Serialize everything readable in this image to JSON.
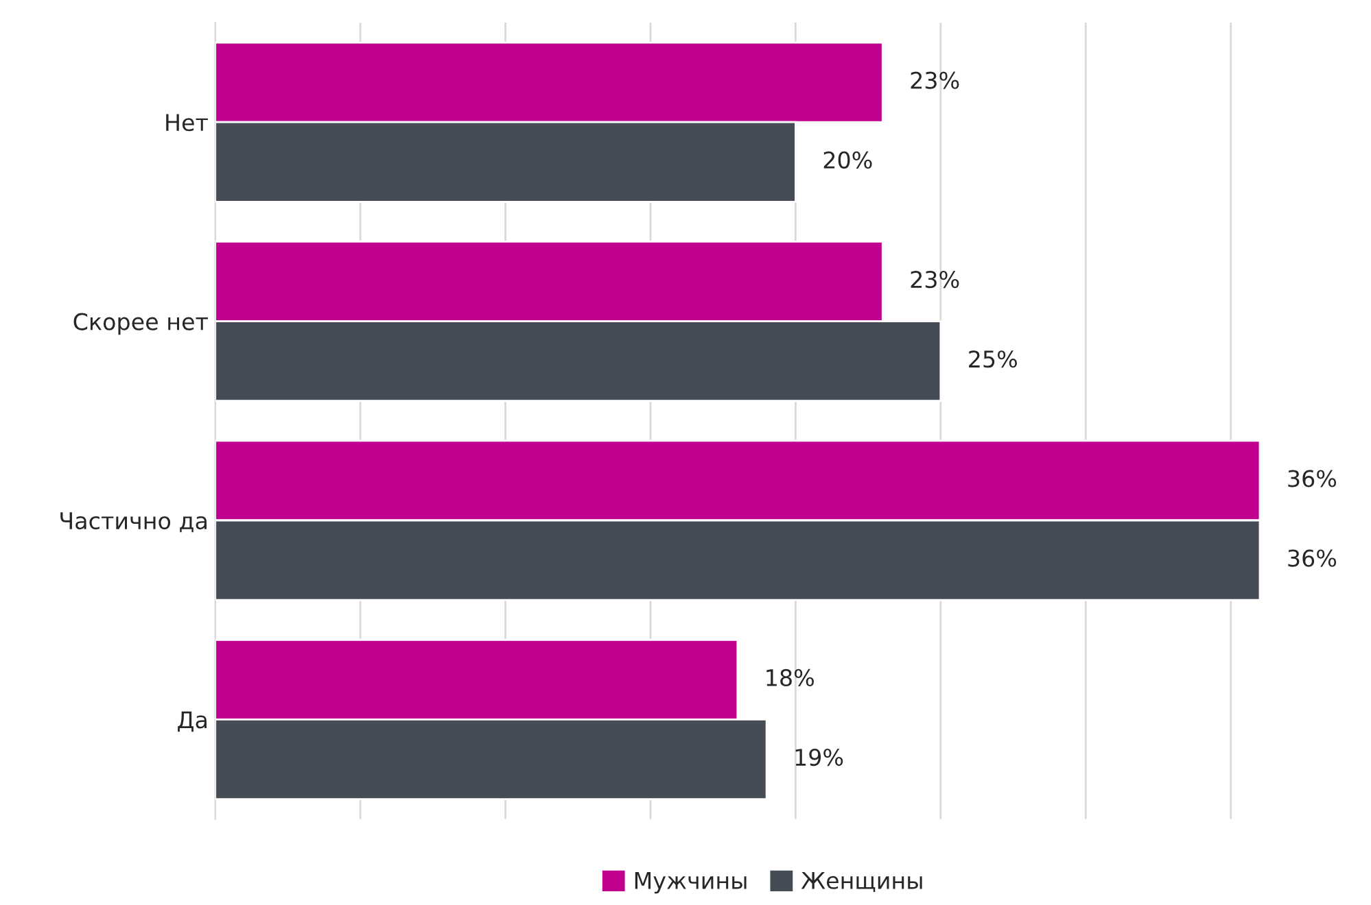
{
  "chart_data": {
    "type": "bar",
    "orientation": "horizontal",
    "categories": [
      "Нет",
      "Скорее нет",
      "Частично да",
      "Да"
    ],
    "series": [
      {
        "name": "Мужчины",
        "color": "#c0008f",
        "values": [
          23,
          23,
          36,
          18
        ],
        "value_labels": [
          "23%",
          "23%",
          "36%",
          "18%"
        ]
      },
      {
        "name": "Женщины",
        "color": "#464c55",
        "values": [
          20,
          25,
          36,
          19
        ],
        "value_labels": [
          "20%",
          "25%",
          "36%",
          "19%"
        ]
      }
    ],
    "grid": "x",
    "legend": "bottom"
  }
}
